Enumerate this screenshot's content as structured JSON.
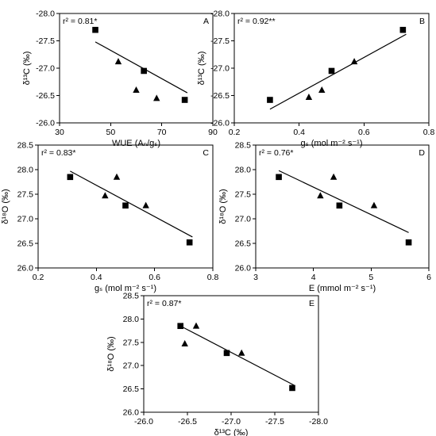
{
  "chart_data": [
    {
      "panel": "A",
      "type": "scatter",
      "annotation": "r² = 0.81*",
      "xlabel": "WUE (Aₙ/gₛ)",
      "ylabel": "δ¹³C (‰)",
      "xlim": [
        30,
        90
      ],
      "ylim": [
        -26.0,
        -28.0
      ],
      "xticks": [
        30,
        50,
        70,
        90
      ],
      "yticks": [
        -26.0,
        -26.5,
        -27.0,
        -27.5,
        -28.0
      ],
      "x_tick_labels": [
        "30",
        "50",
        "70",
        "90"
      ],
      "y_tick_labels": [
        "-26.0",
        "-26.5",
        "-27.0",
        "-27.5",
        "-28.0"
      ],
      "series": [
        {
          "marker": "square",
          "x": [
            44,
            63,
            79
          ],
          "y": [
            -27.7,
            -26.95,
            -26.42
          ]
        },
        {
          "marker": "triangle",
          "x": [
            53,
            60,
            68
          ],
          "y": [
            -27.12,
            -26.6,
            -26.45
          ]
        }
      ],
      "fit": {
        "x": [
          44,
          80
        ],
        "y": [
          -27.48,
          -26.55
        ]
      },
      "grid": false,
      "legend": "none"
    },
    {
      "panel": "B",
      "type": "scatter",
      "annotation": "r² = 0.92**",
      "xlabel": "gₛ (mol m⁻² s⁻¹)",
      "ylabel": "δ¹³C (‰)",
      "xlim": [
        0.2,
        0.8
      ],
      "ylim": [
        -26.0,
        -28.0
      ],
      "xticks": [
        0.2,
        0.4,
        0.6,
        0.8
      ],
      "yticks": [
        -26.0,
        -26.5,
        -27.0,
        -27.5,
        -28.0
      ],
      "x_tick_labels": [
        "0.2",
        "0.4",
        "0.6",
        "0.8"
      ],
      "y_tick_labels": [
        "-26.0",
        "-26.5",
        "-27.0",
        "-27.5",
        "-28.0"
      ],
      "series": [
        {
          "marker": "square",
          "x": [
            0.31,
            0.5,
            0.72
          ],
          "y": [
            -26.42,
            -26.95,
            -27.7
          ]
        },
        {
          "marker": "triangle",
          "x": [
            0.43,
            0.47,
            0.57
          ],
          "y": [
            -26.47,
            -26.6,
            -27.12
          ]
        }
      ],
      "fit": {
        "x": [
          0.31,
          0.73
        ],
        "y": [
          -26.25,
          -27.62
        ]
      },
      "grid": false,
      "legend": "none"
    },
    {
      "panel": "C",
      "type": "scatter",
      "annotation": "r² = 0.83*",
      "xlabel": "gₛ (mol m⁻² s⁻¹)",
      "ylabel": "δ¹⁸O (‰)",
      "xlim": [
        0.2,
        0.8
      ],
      "ylim": [
        26.0,
        28.5
      ],
      "xticks": [
        0.2,
        0.4,
        0.6,
        0.8
      ],
      "yticks": [
        26.0,
        26.5,
        27.0,
        27.5,
        28.0,
        28.5
      ],
      "x_tick_labels": [
        "0.2",
        "0.4",
        "0.6",
        "0.8"
      ],
      "y_tick_labels": [
        "26.0",
        "26.5",
        "27.0",
        "27.5",
        "28.0",
        "28.5"
      ],
      "series": [
        {
          "marker": "square",
          "x": [
            0.31,
            0.5,
            0.72
          ],
          "y": [
            27.85,
            27.27,
            26.52
          ]
        },
        {
          "marker": "triangle",
          "x": [
            0.43,
            0.47,
            0.57
          ],
          "y": [
            27.47,
            27.85,
            27.27
          ]
        }
      ],
      "fit": {
        "x": [
          0.31,
          0.73
        ],
        "y": [
          27.97,
          26.63
        ]
      },
      "grid": false,
      "legend": "none"
    },
    {
      "panel": "D",
      "type": "scatter",
      "annotation": "r² = 0.76*",
      "xlabel": "E (mmol m⁻² s⁻¹)",
      "ylabel": "δ¹⁸O (‰)",
      "xlim": [
        3,
        6
      ],
      "ylim": [
        26.0,
        28.5
      ],
      "xticks": [
        3,
        4,
        5,
        6
      ],
      "yticks": [
        26.0,
        26.5,
        27.0,
        27.5,
        28.0,
        28.5
      ],
      "x_tick_labels": [
        "3",
        "4",
        "5",
        "6"
      ],
      "y_tick_labels": [
        "26.0",
        "26.5",
        "27.0",
        "27.5",
        "28.0",
        "28.5"
      ],
      "series": [
        {
          "marker": "square",
          "x": [
            3.4,
            4.45,
            5.65
          ],
          "y": [
            27.85,
            27.27,
            26.52
          ]
        },
        {
          "marker": "triangle",
          "x": [
            4.12,
            4.35,
            5.05
          ],
          "y": [
            27.47,
            27.85,
            27.27
          ]
        }
      ],
      "fit": {
        "x": [
          3.4,
          5.65
        ],
        "y": [
          27.98,
          26.72
        ]
      },
      "grid": false,
      "legend": "none"
    },
    {
      "panel": "E",
      "type": "scatter",
      "annotation": "r² = 0.87*",
      "xlabel": "δ¹³C (‰)",
      "ylabel": "δ¹⁸O (‰)",
      "xlim": [
        -26.0,
        -28.0
      ],
      "ylim": [
        26.0,
        28.5
      ],
      "xticks": [
        -26.0,
        -26.5,
        -27.0,
        -27.5,
        -28.0
      ],
      "yticks": [
        26.0,
        26.5,
        27.0,
        27.5,
        28.0,
        28.5
      ],
      "x_tick_labels": [
        "-26.0",
        "-26.5",
        "-27.0",
        "-27.5",
        "-28.0"
      ],
      "y_tick_labels": [
        "26.0",
        "26.5",
        "27.0",
        "27.5",
        "28.0",
        "28.5"
      ],
      "series": [
        {
          "marker": "square",
          "x": [
            -26.42,
            -26.95,
            -27.7
          ],
          "y": [
            27.85,
            27.27,
            26.52
          ]
        },
        {
          "marker": "triangle",
          "x": [
            -26.47,
            -26.6,
            -27.12
          ],
          "y": [
            27.47,
            27.85,
            27.27
          ]
        }
      ],
      "fit": {
        "x": [
          -26.42,
          -27.72
        ],
        "y": [
          27.85,
          26.58
        ]
      },
      "grid": false,
      "legend": "none"
    }
  ]
}
